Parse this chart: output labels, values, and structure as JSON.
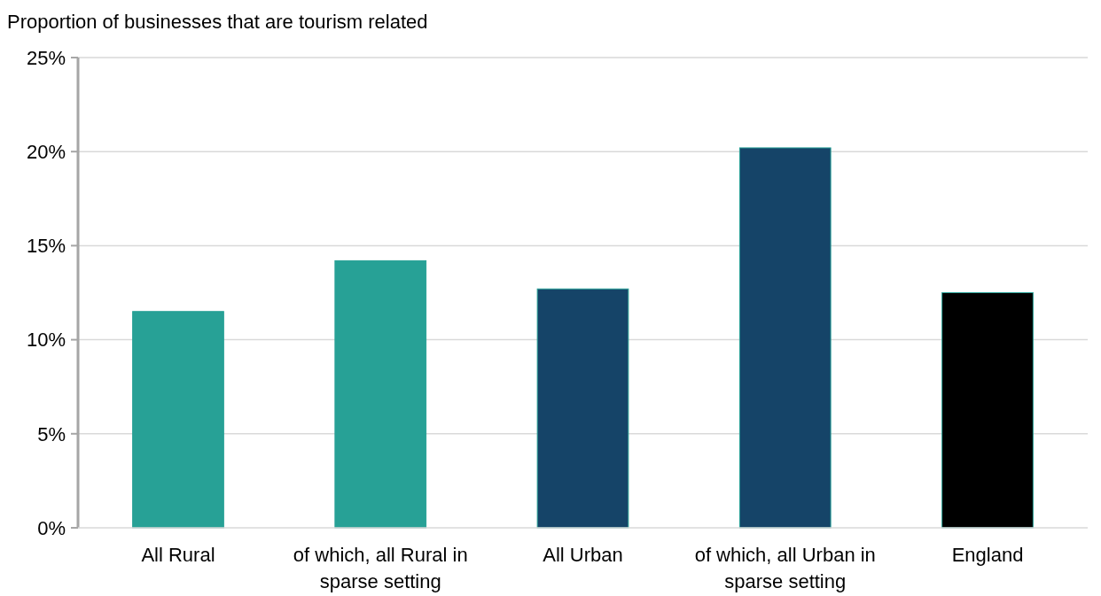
{
  "chart_data": {
    "type": "bar",
    "ylabel": "Proportion of businesses that are tourism related",
    "categories": [
      "All Rural",
      "of which, all Rural in sparse setting",
      "All Urban",
      "of which, all Urban in sparse setting",
      "England"
    ],
    "values": [
      11.5,
      14.2,
      12.7,
      20.2,
      12.5
    ],
    "colors": [
      "#27a196",
      "#27a196",
      "#154468",
      "#154468",
      "#000000"
    ],
    "ylim": [
      0,
      25
    ],
    "yticks": [
      {
        "value": 0,
        "label": "0%"
      },
      {
        "value": 5,
        "label": "5%"
      },
      {
        "value": 10,
        "label": "10%"
      },
      {
        "value": 15,
        "label": "15%"
      },
      {
        "value": 20,
        "label": "20%"
      },
      {
        "value": 25,
        "label": "25%"
      }
    ],
    "grid": "y"
  }
}
